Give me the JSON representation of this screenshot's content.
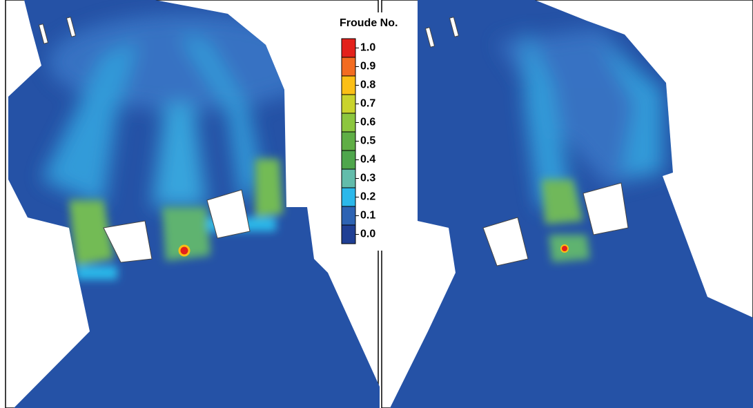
{
  "legend": {
    "title": "Froude No.",
    "levels": [
      "1.0",
      "0.9",
      "0.8",
      "0.7",
      "0.6",
      "0.5",
      "0.4",
      "0.3",
      "0.2",
      "0.1",
      "0.0"
    ],
    "colors": [
      "#e3211b",
      "#f36c21",
      "#fbbf16",
      "#c9d32d",
      "#8cc63e",
      "#5fae45",
      "#4fa64c",
      "#62bcab",
      "#2bb8ea",
      "#2d63b3",
      "#1f3f94"
    ]
  }
}
